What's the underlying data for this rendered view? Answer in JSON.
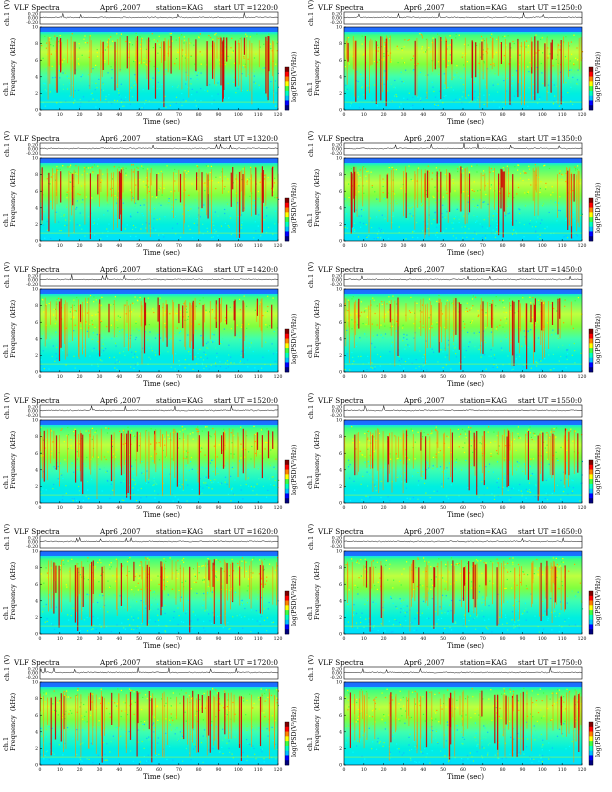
{
  "header": {
    "title": "VLF Spectra",
    "date": "Apr6 ,2007",
    "station": "station=KAG",
    "start_prefix": "start  UT ="
  },
  "labels": {
    "amp_axis": "ch.1 (V)",
    "freq_axis": "ch.1\nFrequency  (kHz)",
    "time_axis": "Time  (sec)",
    "colorbar": "log(PSD(V²/Hz))"
  },
  "panels": [
    {
      "start": "1220:0",
      "xmax": 120
    },
    {
      "start": "1250:0",
      "xmax": 120
    },
    {
      "start": "1320:0",
      "xmax": 120
    },
    {
      "start": "1350:0",
      "xmax": 120
    },
    {
      "start": "1420:0",
      "xmax": 120
    },
    {
      "start": "1450:0",
      "xmax": 120
    },
    {
      "start": "1520:0",
      "xmax": 120
    },
    {
      "start": "1550:0",
      "xmax": 120
    },
    {
      "start": "1620:0",
      "xmax": 120
    },
    {
      "start": "1650:0",
      "xmax": 120
    },
    {
      "start": "1720:0",
      "xmax": 120
    },
    {
      "start": "1750:0",
      "xmax": 120
    }
  ],
  "chart_data": {
    "type": "heatmap",
    "title": "VLF Spectra",
    "x_axis": {
      "label": "Time  (sec)",
      "range": [
        0,
        120
      ],
      "ticks": [
        0,
        10,
        20,
        30,
        40,
        50,
        60,
        70,
        80,
        90,
        100,
        110,
        120
      ]
    },
    "y_axis": {
      "label": "Frequency  (kHz)",
      "range": [
        0,
        10
      ],
      "ticks": [
        0,
        2,
        4,
        6,
        8,
        10
      ]
    },
    "amplitude_axis": {
      "label": "ch.1 (V)",
      "ticks": [
        "0.20",
        "0.00",
        "-0.20"
      ]
    },
    "colorbar": {
      "label": "log(PSD(V²/Hz))",
      "colors": [
        "#00007f",
        "#0000ff",
        "#00bfff",
        "#00ffbf",
        "#3fff3f",
        "#ffff00",
        "#ff7f00",
        "#ff0000",
        "#7f0000"
      ]
    },
    "start_times_ut": [
      "1220:0",
      "1250:0",
      "1320:0",
      "1350:0",
      "1420:0",
      "1450:0",
      "1520:0",
      "1550:0",
      "1620:0",
      "1650:0",
      "1720:0",
      "1750:0"
    ],
    "grid": false
  }
}
